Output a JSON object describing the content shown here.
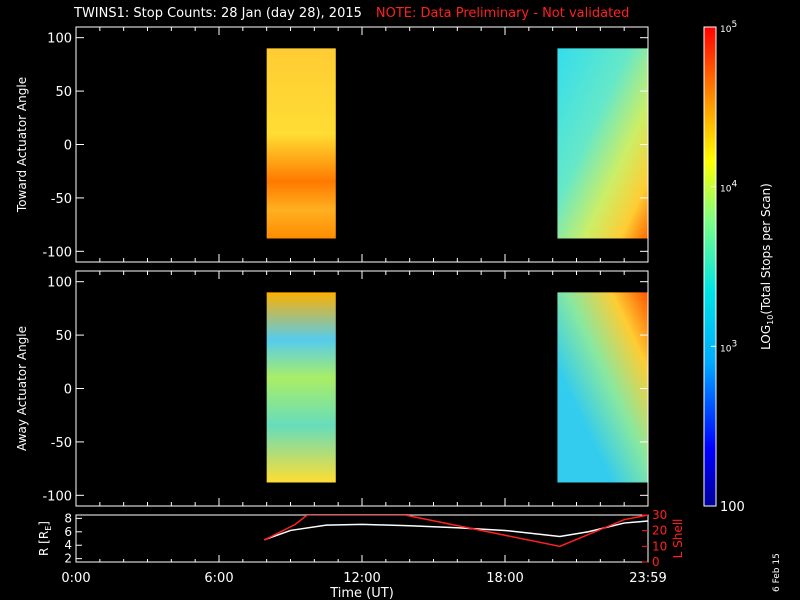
{
  "title": "TWINS1: Stop Counts: 28 Jan (day  28), 2015",
  "note": "NOTE: Data Preliminary - Not validated",
  "date_stamp": "6 Feb 15",
  "colors": {
    "background": "#000000",
    "axes": "#ffffff",
    "note": "#ff2020",
    "r_line": "#ffffff",
    "l_line": "#ff2020"
  },
  "chart_data": [
    {
      "type": "heatmap",
      "panel": "toward",
      "ylabel": "Toward Actuator Angle",
      "yticks": [
        100,
        50,
        0,
        -50,
        -100
      ],
      "ylim": [
        -110,
        110
      ],
      "xlim": [
        0,
        24
      ],
      "xticks": [
        "0:00",
        "6:00",
        "12:00",
        "18:00",
        "23:59"
      ],
      "angle_range": [
        -88,
        90
      ],
      "blocks": [
        {
          "t_start": 8.0,
          "t_end": 10.9,
          "description_level_log": "high"
        },
        {
          "t_start": 20.2,
          "t_end": 24.0,
          "description_level_log": "mid"
        }
      ]
    },
    {
      "type": "heatmap",
      "panel": "away",
      "ylabel": "Away Actuator Angle",
      "yticks": [
        100,
        50,
        0,
        -50,
        -100
      ],
      "ylim": [
        -110,
        110
      ],
      "xlim": [
        0,
        24
      ],
      "xticks": [
        "0:00",
        "6:00",
        "12:00",
        "18:00",
        "23:59"
      ],
      "angle_range": [
        -88,
        90
      ],
      "blocks": [
        {
          "t_start": 8.0,
          "t_end": 10.9
        },
        {
          "t_start": 20.2,
          "t_end": 24.0
        }
      ]
    },
    {
      "type": "line",
      "panel": "orbit",
      "xlabel": "Time (UT)",
      "ylabel_left": "R [R",
      "ylabel_left_sub": "E",
      "ylabel_left_end": "]",
      "ylabel_right": "L Shell",
      "left_ticks": [
        8,
        6,
        4,
        2
      ],
      "left_lim": [
        1.5,
        8.5
      ],
      "right_ticks": [
        30,
        20,
        10,
        0
      ],
      "right_lim": [
        0,
        30
      ],
      "series": [
        {
          "name": "R",
          "axis": "left",
          "x": [
            7.9,
            9.0,
            10.5,
            12.0,
            14.0,
            16.0,
            18.0,
            20.3,
            21.5,
            23.0,
            24.0
          ],
          "y": [
            4.8,
            6.2,
            7.0,
            7.1,
            6.9,
            6.6,
            6.2,
            5.3,
            6.0,
            7.3,
            7.6
          ]
        },
        {
          "name": "L Shell",
          "axis": "right",
          "x": [
            7.9,
            9.2,
            9.7,
            13.8,
            20.3,
            23.0,
            24.0
          ],
          "y": [
            14,
            24,
            30,
            30,
            10,
            27,
            30
          ]
        }
      ]
    }
  ],
  "colorbar": {
    "label": "LOG",
    "label_sub": "10",
    "label_end": "(Total Stops per Scan)",
    "tick_labels": [
      {
        "base": "10",
        "exp": "5",
        "value": 100000
      },
      {
        "base": "10",
        "exp": "4",
        "value": 10000
      },
      {
        "base": "10",
        "exp": "3",
        "value": 1000
      },
      {
        "base": "100",
        "exp": "",
        "value": 100
      }
    ],
    "range": [
      100,
      100000
    ]
  }
}
